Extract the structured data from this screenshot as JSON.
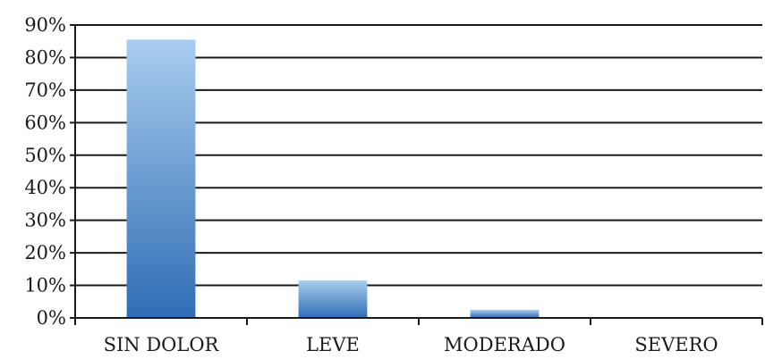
{
  "chart_data": {
    "type": "bar",
    "categories": [
      "SIN DOLOR",
      "LEVE",
      "MODERADO",
      "SEVERO"
    ],
    "values": [
      85.5,
      11.5,
      2.5,
      0
    ],
    "ylim": [
      0,
      90
    ],
    "yticks": [
      "0%",
      "10%",
      "20%",
      "30%",
      "40%",
      "50%",
      "60%",
      "70%",
      "80%",
      "90%"
    ],
    "ytick_values": [
      0,
      10,
      20,
      30,
      40,
      50,
      60,
      70,
      80,
      90
    ],
    "title": "",
    "xlabel": "",
    "ylabel": "",
    "grid": true,
    "legend": "none",
    "colors": {
      "bar_top": "#a9cdee",
      "bar_bottom": "#2f6db5",
      "grid": "#1a1a1a",
      "text": "#1a1a1a"
    }
  }
}
